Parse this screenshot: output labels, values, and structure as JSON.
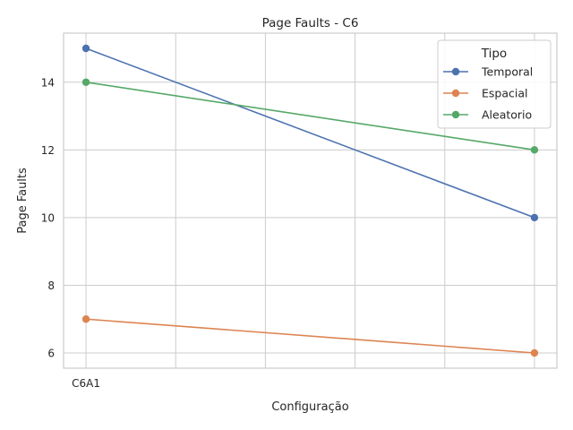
{
  "chart_data": {
    "type": "line",
    "title": "Page Faults - C6",
    "xlabel": "Configuração",
    "ylabel": "Page Faults",
    "x_tick_labels": [
      "C6A1"
    ],
    "x": [
      0,
      5
    ],
    "xlim": [
      -0.25,
      5.25
    ],
    "ylim": [
      5.55,
      15.45
    ],
    "yticks": [
      6,
      8,
      10,
      12,
      14
    ],
    "x_gridlines": [
      0,
      1,
      2,
      3,
      4,
      5
    ],
    "grid": true,
    "legend": {
      "title": "Tipo",
      "placement": "top-right"
    },
    "series": [
      {
        "name": "Temporal",
        "color": "#4c72b0",
        "values": [
          15,
          10
        ]
      },
      {
        "name": "Espacial",
        "color": "#dd8452",
        "values": [
          7,
          6
        ]
      },
      {
        "name": "Aleatorio",
        "color": "#55a868",
        "values": [
          14,
          12
        ]
      }
    ]
  }
}
